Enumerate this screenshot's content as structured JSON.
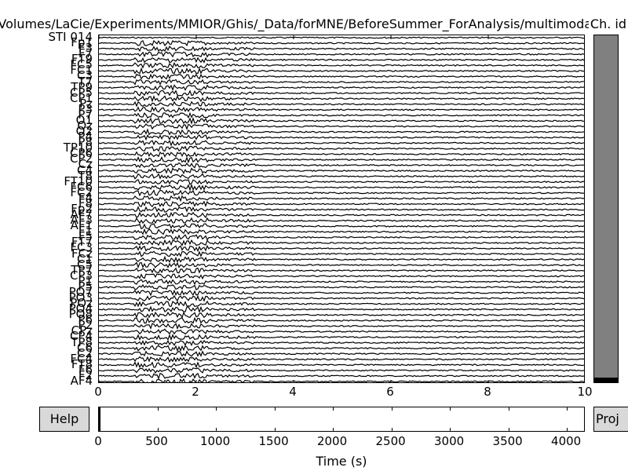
{
  "window": {
    "title": "/Volumes/LaCie/Experiments/MMIOR/Ghis/_Data/forMNE/BeforeSummer_ForAnalysis/multimodal_ica_raw.fif",
    "title_right": "Ch. id"
  },
  "channels": [
    "STI 014",
    "Fp1",
    "F3",
    "F7",
    "FT9",
    "FC5",
    "FC1",
    "C3",
    "T7",
    "TP9",
    "CP5",
    "CP1",
    "Pz",
    "P3",
    "P7",
    "O1",
    "Oz",
    "O2",
    "P4",
    "P8",
    "TP10",
    "CP6",
    "CP2",
    "Cz",
    "C4",
    "T8",
    "FT10",
    "FC6",
    "FC2",
    "F4",
    "F8",
    "Fp2",
    "AF7",
    "AF3",
    "AF1",
    "F1",
    "F5",
    "FT7",
    "FC3",
    "FCz",
    "C1",
    "C5",
    "TP7",
    "CP3",
    "P1",
    "P5",
    "PO7",
    "PO3",
    "POz",
    "PO4",
    "PO8",
    "P6",
    "P2",
    "CPz",
    "CP4",
    "TP8",
    "C6",
    "C2",
    "FC4",
    "FT8",
    "F6",
    "F2",
    "AF4"
  ],
  "time_axis": {
    "ticks": [
      "0",
      "2",
      "4",
      "6",
      "8",
      "10"
    ],
    "range_s": [
      0,
      10
    ]
  },
  "buttons": {
    "help": "Help",
    "proj": "Proj"
  },
  "overview": {
    "ticks": [
      "0",
      "500",
      "1000",
      "1500",
      "2000",
      "2500",
      "3000",
      "3500",
      "4000"
    ],
    "total_s": 4160,
    "view_start_s": 0,
    "view_width_s": 10
  },
  "xlabel": "Time (s)",
  "colors": {
    "trace": "#000000",
    "scrollbar": "#808080",
    "button": "#d9d9d9"
  }
}
